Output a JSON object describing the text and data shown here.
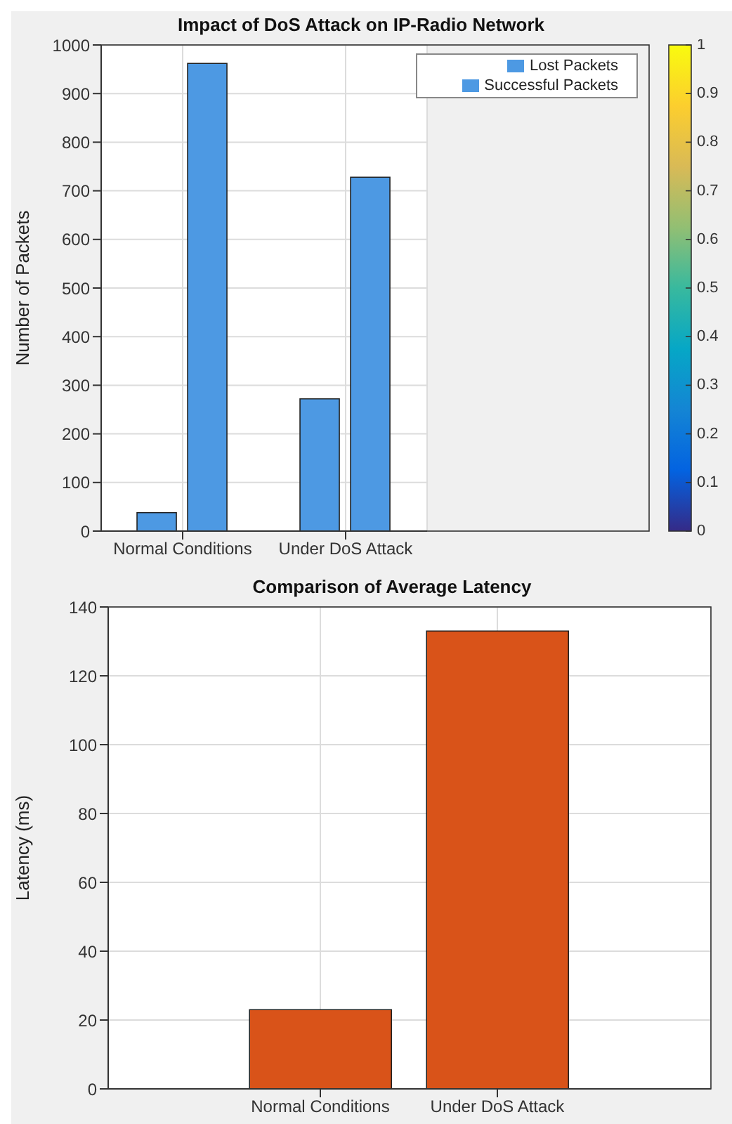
{
  "chart_data": [
    {
      "type": "bar",
      "title": "Impact of DoS Attack on IP-Radio Network",
      "ylabel": "Number of Packets",
      "categories": [
        "Normal Conditions",
        "Under DoS Attack"
      ],
      "series": [
        {
          "name": "Lost Packets",
          "color": "#4d99e3",
          "values": [
            38,
            272
          ]
        },
        {
          "name": "Successful Packets",
          "color": "#4d99e3",
          "values": [
            962,
            728
          ]
        }
      ],
      "ylim": [
        0,
        1000
      ],
      "yticks": [
        0,
        100,
        200,
        300,
        400,
        500,
        600,
        700,
        800,
        900,
        1000
      ],
      "grid": true,
      "legend": "top right",
      "clim": [
        0,
        1
      ],
      "cticks": [
        0,
        0.1,
        0.2,
        0.3,
        0.4,
        0.5,
        0.6,
        0.7,
        0.8,
        0.9,
        1
      ]
    },
    {
      "type": "bar",
      "title": "Comparison of Average Latency",
      "ylabel": "Latency (ms)",
      "categories": [
        "Normal Conditions",
        "Under DoS Attack"
      ],
      "values": [
        23,
        133
      ],
      "color": "#d95319",
      "ylim": [
        0,
        140
      ],
      "yticks": [
        0,
        20,
        40,
        60,
        80,
        100,
        120,
        140
      ],
      "grid": true
    }
  ]
}
